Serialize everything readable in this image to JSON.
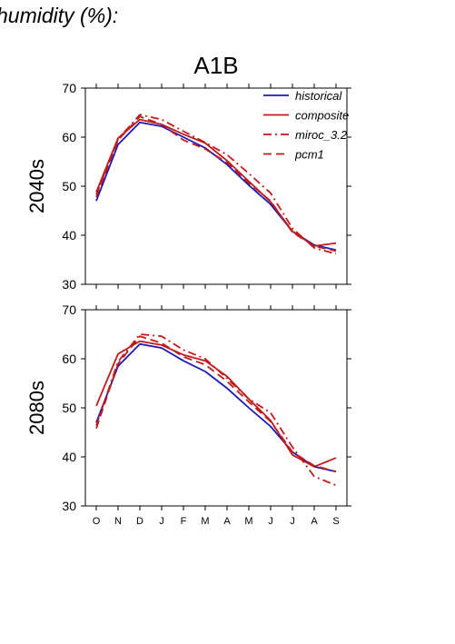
{
  "page": {
    "title": "humidity (%):"
  },
  "chart_data": {
    "type": "line",
    "title": "A1B",
    "categories": [
      "O",
      "N",
      "D",
      "J",
      "F",
      "M",
      "A",
      "M",
      "J",
      "J",
      "A",
      "S"
    ],
    "ylim": [
      30,
      70
    ],
    "yticks": [
      30,
      40,
      50,
      60,
      70
    ],
    "legend": {
      "placement": "top-right",
      "entries": [
        "historical",
        "composite",
        "miroc_3.2",
        "pcm1"
      ]
    },
    "series_styles": {
      "historical": {
        "color": "#1a1ab8",
        "dash": ""
      },
      "composite": {
        "color": "#c01a1a",
        "dash": ""
      },
      "miroc_3.2": {
        "color": "#c01a1a",
        "dash": "9,4,2,4"
      },
      "pcm1": {
        "color": "#c01a1a",
        "dash": "9,5"
      }
    },
    "panels": [
      {
        "label": "2040s",
        "series": [
          {
            "name": "historical",
            "values": [
              47.0,
              58.5,
              63.0,
              62.2,
              60.0,
              57.8,
              54.4,
              50.2,
              46.3,
              40.8,
              38.0,
              37.0
            ]
          },
          {
            "name": "composite",
            "values": [
              48.8,
              59.8,
              63.6,
              62.6,
              60.6,
              58.8,
              55.2,
              51.0,
              46.8,
              40.8,
              37.8,
              38.4
            ]
          },
          {
            "name": "miroc_3.2",
            "values": [
              48.3,
              59.6,
              64.6,
              63.6,
              61.2,
              58.9,
              56.4,
              52.6,
              48.6,
              41.4,
              37.4,
              36.2
            ]
          },
          {
            "name": "pcm1",
            "values": [
              47.8,
              59.4,
              64.2,
              62.6,
              59.4,
              57.6,
              54.8,
              50.6,
              47.0,
              40.6,
              37.8,
              36.8
            ]
          }
        ]
      },
      {
        "label": "2080s",
        "series": [
          {
            "name": "historical",
            "values": [
              47.0,
              58.5,
              63.0,
              62.2,
              59.6,
              57.4,
              54.0,
              50.0,
              46.2,
              41.0,
              38.0,
              37.0
            ]
          },
          {
            "name": "composite",
            "values": [
              50.4,
              61.0,
              63.6,
              62.8,
              60.8,
              59.6,
              56.4,
              51.8,
              47.4,
              40.4,
              38.0,
              39.8
            ]
          },
          {
            "name": "miroc_3.2",
            "values": [
              46.4,
              59.4,
              65.0,
              64.6,
              61.8,
              60.0,
              56.0,
              51.8,
              49.0,
              42.0,
              36.0,
              34.2
            ]
          },
          {
            "name": "pcm1",
            "values": [
              45.8,
              59.0,
              64.6,
              63.2,
              60.4,
              58.8,
              55.4,
              51.2,
              47.2,
              41.0,
              38.2,
              37.0
            ]
          }
        ]
      }
    ]
  }
}
